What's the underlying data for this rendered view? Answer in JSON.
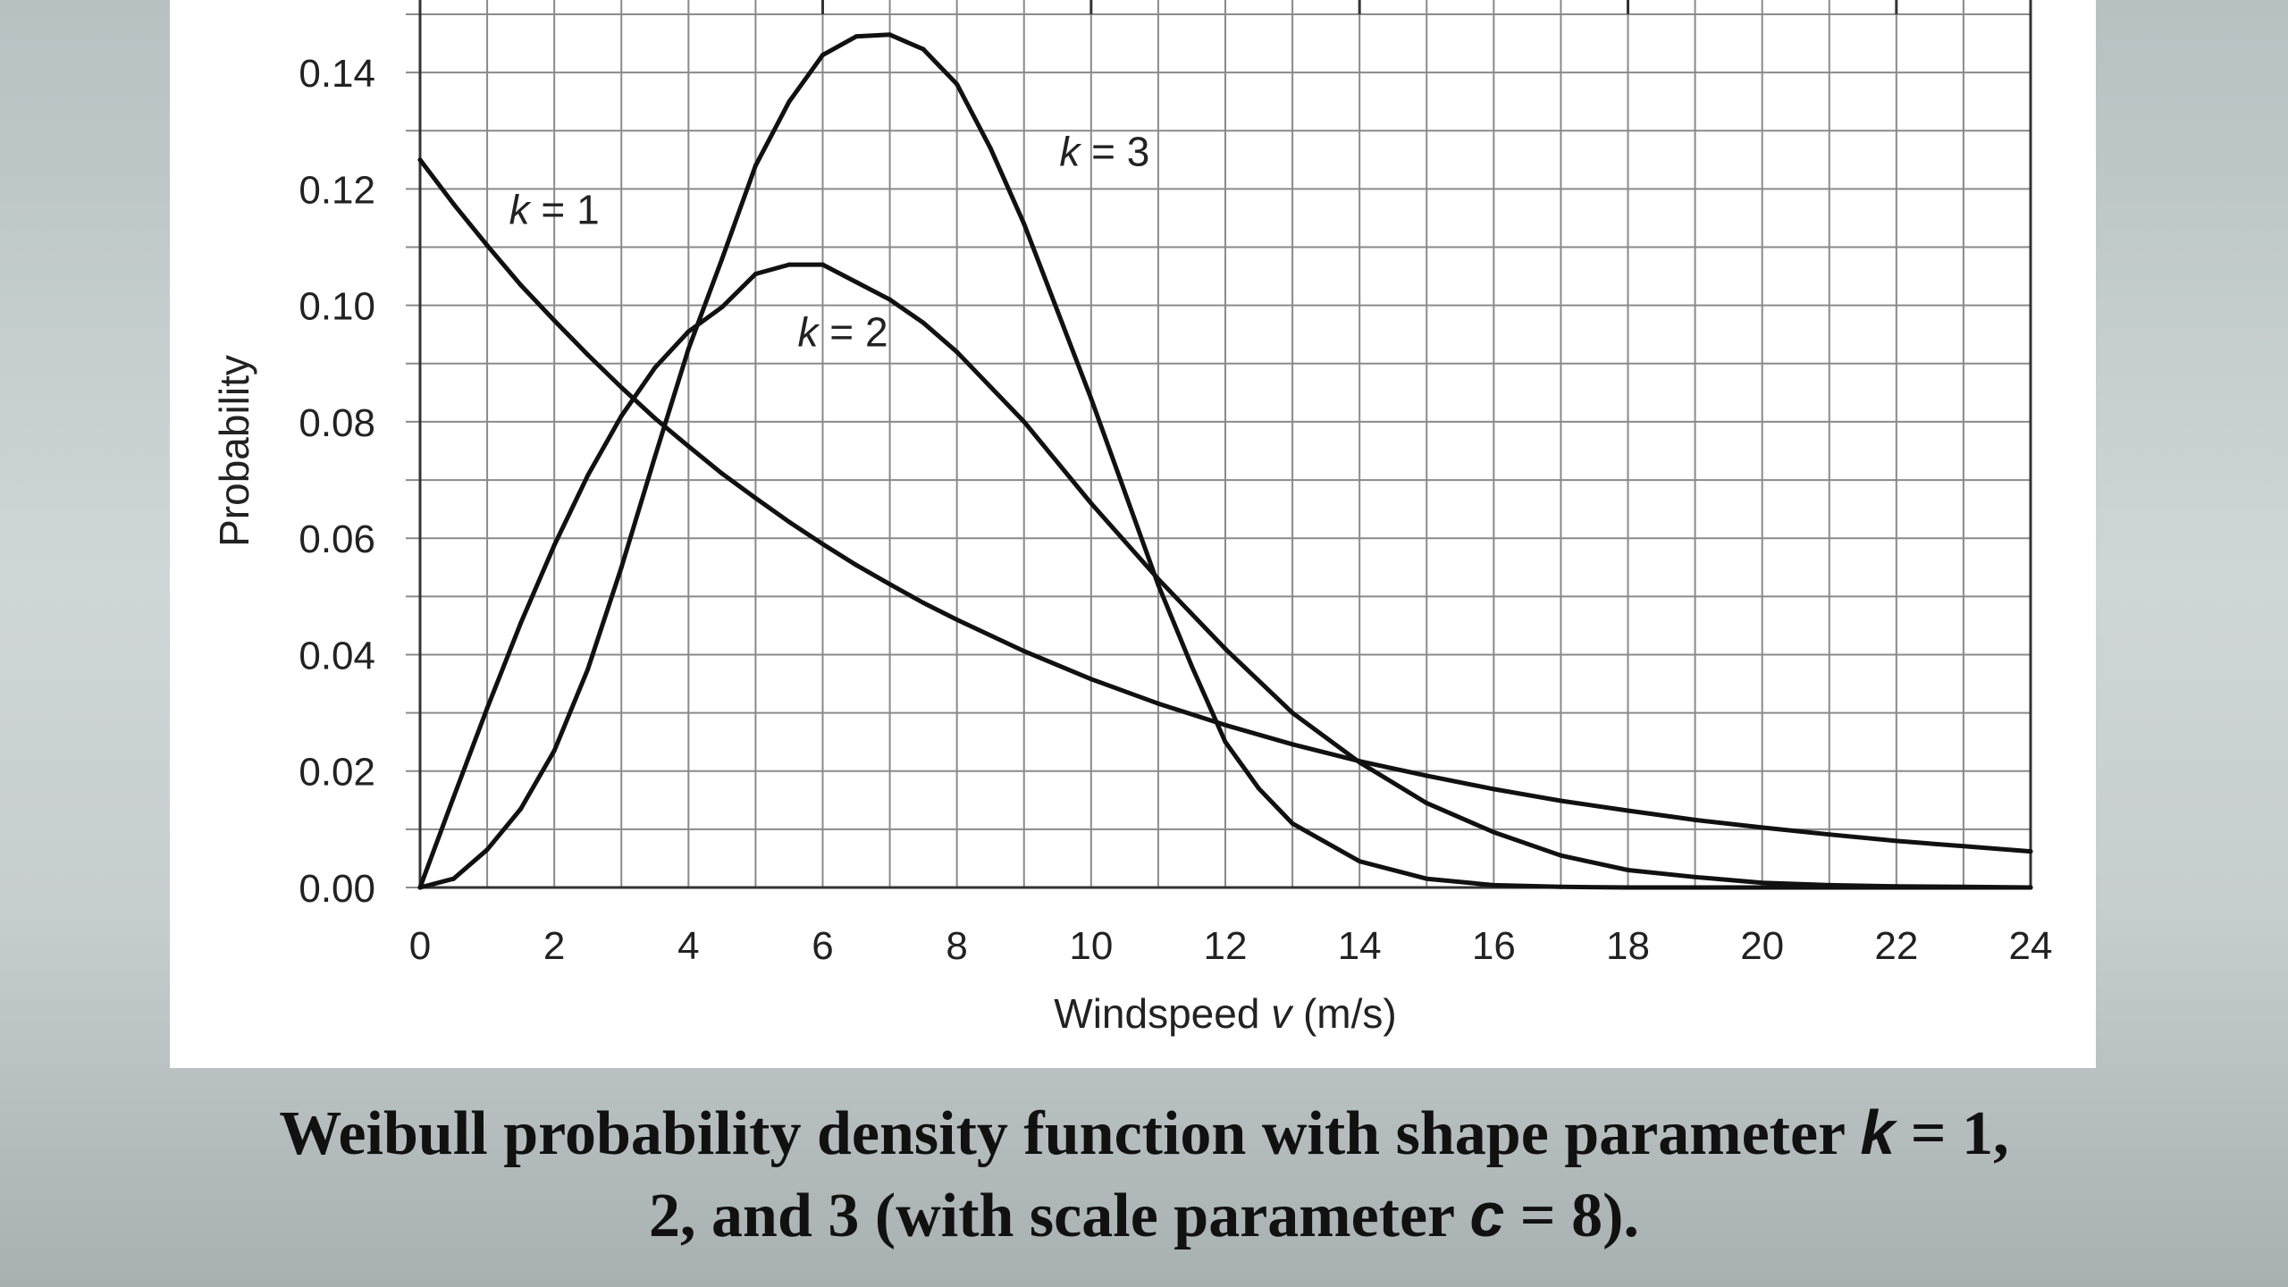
{
  "caption": {
    "line1_pre": "Weibull probability density function with shape parameter ",
    "k_symbol": "k",
    "line1_post": " = 1,",
    "line2_pre": "2, and 3  (with scale parameter ",
    "c_symbol": "c",
    "line2_post": " = 8)."
  },
  "chart_data": {
    "type": "line",
    "title": "",
    "xlabel_text": "Windspeed",
    "xlabel_var": "v",
    "xlabel_unit": "(m/s)",
    "ylabel": "Probability",
    "xlim": [
      0,
      24
    ],
    "ylim": [
      0,
      0.15
    ],
    "xticks": [
      0,
      2,
      4,
      6,
      8,
      10,
      12,
      14,
      16,
      18,
      20,
      22,
      24
    ],
    "yticks": [
      0.0,
      0.02,
      0.04,
      0.06,
      0.08,
      0.1,
      0.12,
      0.14
    ],
    "ytick_labels": [
      "0.00",
      "0.02",
      "0.04",
      "0.06",
      "0.08",
      "0.10",
      "0.12",
      "0.14"
    ],
    "grid": true,
    "series": [
      {
        "name": "k = 1",
        "label_var": "k",
        "label_val": "1",
        "label_at": [
          2.0,
          0.114
        ],
        "x": [
          0,
          0.5,
          1,
          1.5,
          2,
          2.5,
          3,
          3.5,
          4,
          4.5,
          5,
          5.5,
          6,
          6.5,
          7,
          7.5,
          8,
          9,
          10,
          11,
          12,
          13,
          14,
          15,
          16,
          17,
          18,
          19,
          20,
          21,
          22,
          23,
          24
        ],
        "values": [
          0.125,
          0.1174,
          0.1103,
          0.1035,
          0.0974,
          0.0915,
          0.0859,
          0.0806,
          0.0758,
          0.0711,
          0.0669,
          0.0628,
          0.059,
          0.0554,
          0.0521,
          0.0489,
          0.046,
          0.0406,
          0.0358,
          0.0316,
          0.0279,
          0.0246,
          0.0217,
          0.0192,
          0.0169,
          0.0149,
          0.0132,
          0.0116,
          0.0103,
          0.0091,
          0.008,
          0.0071,
          0.0062
        ]
      },
      {
        "name": "k = 2",
        "label_var": "k",
        "label_val": "2",
        "label_at": [
          6.3,
          0.093
        ],
        "x": [
          0,
          0.5,
          1,
          1.5,
          2,
          2.5,
          3,
          3.5,
          4,
          4.5,
          5,
          5.5,
          6,
          6.5,
          7,
          7.5,
          8,
          9,
          10,
          11,
          12,
          13,
          14,
          15,
          16,
          17,
          18,
          19,
          20,
          21,
          22,
          23,
          24
        ],
        "values": [
          0,
          0.0155,
          0.0308,
          0.0454,
          0.0588,
          0.0708,
          0.081,
          0.0893,
          0.0955,
          0.0997,
          0.1054,
          0.107,
          0.107,
          0.104,
          0.101,
          0.097,
          0.092,
          0.08,
          0.066,
          0.053,
          0.041,
          0.03,
          0.0215,
          0.0145,
          0.0095,
          0.0055,
          0.003,
          0.0018,
          0.0008,
          0.0004,
          0.0002,
          0.0001,
          0
        ]
      },
      {
        "name": "k = 3",
        "label_var": "k",
        "label_val": "3",
        "label_at": [
          10.2,
          0.124
        ],
        "x": [
          0,
          0.5,
          1,
          1.5,
          2,
          2.5,
          3,
          3.5,
          4,
          4.5,
          5,
          5.5,
          6,
          6.5,
          7,
          7.5,
          8,
          8.5,
          9,
          9.5,
          10,
          10.5,
          11,
          11.5,
          12,
          12.5,
          13,
          14,
          15,
          16,
          17,
          18,
          20,
          22,
          24
        ],
        "values": [
          0,
          0.0015,
          0.0065,
          0.0135,
          0.0235,
          0.0375,
          0.055,
          0.074,
          0.0925,
          0.108,
          0.124,
          0.135,
          0.143,
          0.1462,
          0.1465,
          0.144,
          0.138,
          0.127,
          0.114,
          0.099,
          0.084,
          0.068,
          0.052,
          0.038,
          0.025,
          0.017,
          0.011,
          0.0045,
          0.0015,
          0.0004,
          0.0001,
          0,
          0,
          0,
          0
        ]
      }
    ]
  }
}
